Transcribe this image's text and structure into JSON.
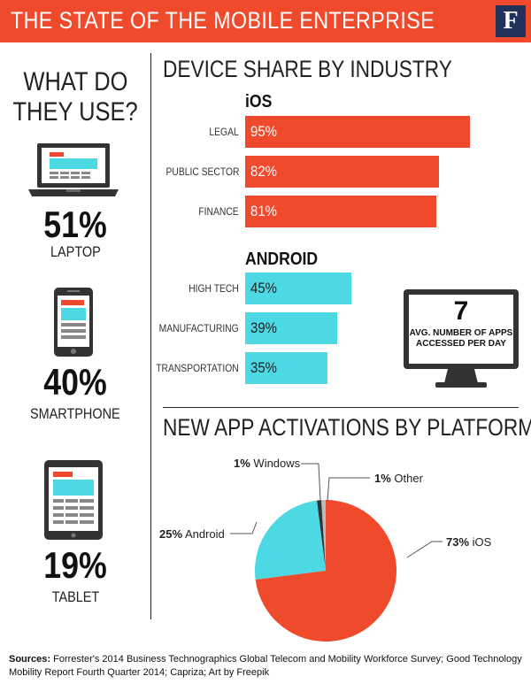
{
  "header": {
    "title": "THE STATE OF THE MOBILE ENTERPRISE",
    "logo_letter": "F"
  },
  "colors": {
    "accent_red": "#f04a2c",
    "accent_cyan": "#4cd9e3",
    "dark": "#333333",
    "navy": "#23325a"
  },
  "left": {
    "heading_line1": "WHAT DO",
    "heading_line2": "THEY USE?",
    "devices": [
      {
        "icon": "laptop-icon",
        "percent": "51%",
        "label": "LAPTOP"
      },
      {
        "icon": "smartphone-icon",
        "percent": "40%",
        "label": "SMARTPHONE"
      },
      {
        "icon": "tablet-icon",
        "percent": "19%",
        "label": "TABLET"
      }
    ]
  },
  "chart_data": [
    {
      "type": "bar",
      "orientation": "horizontal",
      "title": "DEVICE SHARE BY INDUSTRY",
      "groups": [
        {
          "name": "iOS",
          "color": "#f04a2c",
          "categories": [
            "LEGAL",
            "PUBLIC SECTOR",
            "FINANCE"
          ],
          "values": [
            95,
            82,
            81
          ],
          "value_labels": [
            "95%",
            "82%",
            "81%"
          ]
        },
        {
          "name": "ANDROID",
          "color": "#4cd9e3",
          "categories": [
            "HIGH TECH",
            "MANUFACTURING",
            "TRANSPORTATION"
          ],
          "values": [
            45,
            39,
            35
          ],
          "value_labels": [
            "45%",
            "39%",
            "35%"
          ]
        }
      ]
    },
    {
      "type": "pie",
      "title": "NEW APP ACTIVATIONS BY PLATFORM",
      "slices": [
        {
          "name": "iOS",
          "value": 73,
          "label_pct": "73%",
          "color": "#f04a2c"
        },
        {
          "name": "Android",
          "value": 25,
          "label_pct": "25%",
          "color": "#4cd9e3"
        },
        {
          "name": "Windows",
          "value": 1,
          "label_pct": "1%",
          "color": "#333333"
        },
        {
          "name": "Other",
          "value": 1,
          "label_pct": "1%",
          "color": "#bbbbbb"
        }
      ]
    }
  ],
  "monitor": {
    "number": "7",
    "text_line1": "AVG. NUMBER OF APPS",
    "text_line2": "ACCESSED PER DAY"
  },
  "sources": {
    "label": "Sources:",
    "text": "Forrester's 2014 Business Technographics Global Telecom and Mobility Workforce Survey; Good Technology Mobility Report Fourth Quarter 2014; Capriza; Art by Freepik"
  }
}
